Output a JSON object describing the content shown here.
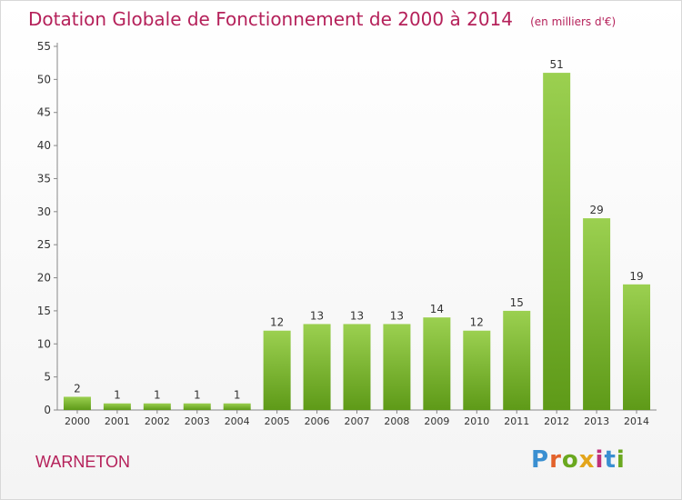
{
  "chart_data": {
    "type": "bar",
    "title": "Dotation Globale de Fonctionnement de 2000 à 2014",
    "unit_note": "(en milliers d'€)",
    "categories": [
      "2000",
      "2001",
      "2002",
      "2003",
      "2004",
      "2005",
      "2006",
      "2007",
      "2008",
      "2009",
      "2010",
      "2011",
      "2012",
      "2013",
      "2014"
    ],
    "values": [
      2,
      1,
      1,
      1,
      1,
      12,
      13,
      13,
      13,
      14,
      12,
      15,
      51,
      29,
      19
    ],
    "ylim": [
      0,
      55
    ],
    "yticks": [
      0,
      5,
      10,
      15,
      20,
      25,
      30,
      35,
      40,
      45,
      50,
      55
    ],
    "grid": false,
    "colors": {
      "bar_top": "#9bd050",
      "bar_bottom": "#5e9a18",
      "title": "#b5215a",
      "axis": "#888888",
      "text": "#333333"
    }
  },
  "footer": {
    "commune": "WARNETON",
    "logo": "Proxiti"
  }
}
